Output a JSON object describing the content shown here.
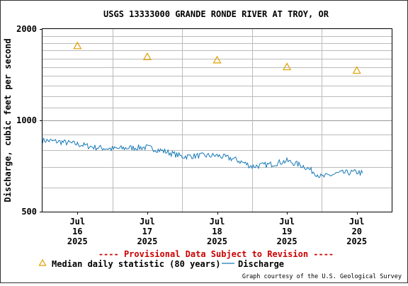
{
  "chart_data": {
    "type": "line",
    "title": "USGS 13333000 GRANDE RONDE RIVER AT TROY, OR",
    "ylabel": "Discharge, cubic feet per second",
    "xlabel": "",
    "y_scale": "log",
    "ylim": [
      500,
      2000
    ],
    "y_tick_labels": [
      "2000",
      "1000",
      "500"
    ],
    "y_tick_values": [
      2000,
      1000,
      500
    ],
    "xlim": [
      "2025-07-15 12:00",
      "2025-07-20 12:00"
    ],
    "x_tick_labels": [
      {
        "value": "2025-07-16 00:00",
        "month": "Jul",
        "day": "16",
        "year": "2025"
      },
      {
        "value": "2025-07-17 00:00",
        "month": "Jul",
        "day": "17",
        "year": "2025"
      },
      {
        "value": "2025-07-18 00:00",
        "month": "Jul",
        "day": "18",
        "year": "2025"
      },
      {
        "value": "2025-07-19 00:00",
        "month": "Jul",
        "day": "19",
        "year": "2025"
      },
      {
        "value": "2025-07-20 00:00",
        "month": "Jul",
        "day": "20",
        "year": "2025"
      }
    ],
    "grid": true,
    "series": [
      {
        "name": "Median daily statistic (80 years)",
        "marker": "triangle",
        "color": "#e0a000",
        "x": [
          "2025-07-16 00:00",
          "2025-07-17 00:00",
          "2025-07-18 00:00",
          "2025-07-19 00:00",
          "2025-07-20 00:00"
        ],
        "y": [
          1760,
          1620,
          1580,
          1500,
          1460
        ]
      },
      {
        "name": "Discharge",
        "marker": "line",
        "color": "#1a7ab8",
        "x": [
          "2025-07-15 12:00",
          "2025-07-15 18:00",
          "2025-07-16 00:00",
          "2025-07-16 06:00",
          "2025-07-16 12:00",
          "2025-07-16 18:00",
          "2025-07-17 00:00",
          "2025-07-17 06:00",
          "2025-07-17 12:00",
          "2025-07-17 18:00",
          "2025-07-18 00:00",
          "2025-07-18 06:00",
          "2025-07-18 12:00",
          "2025-07-18 18:00",
          "2025-07-19 00:00",
          "2025-07-19 06:00",
          "2025-07-19 12:00",
          "2025-07-19 18:00",
          "2025-07-20 00:00",
          "2025-07-20 02:00"
        ],
        "y": [
          860,
          850,
          835,
          815,
          805,
          812,
          815,
          790,
          760,
          765,
          765,
          745,
          705,
          715,
          735,
          705,
          650,
          670,
          675,
          670
        ]
      }
    ],
    "legend_position": "bottom-left"
  },
  "page": {
    "provisional_note": "---- Provisional Data Subject to Revision ----",
    "credit": "Graph courtesy of the U.S. Geological Survey"
  },
  "colors": {
    "title": "#000000",
    "provisional": "#cc0000",
    "grid": "#bbbbbb",
    "median": "#e0a000",
    "discharge": "#1a7ab8"
  }
}
